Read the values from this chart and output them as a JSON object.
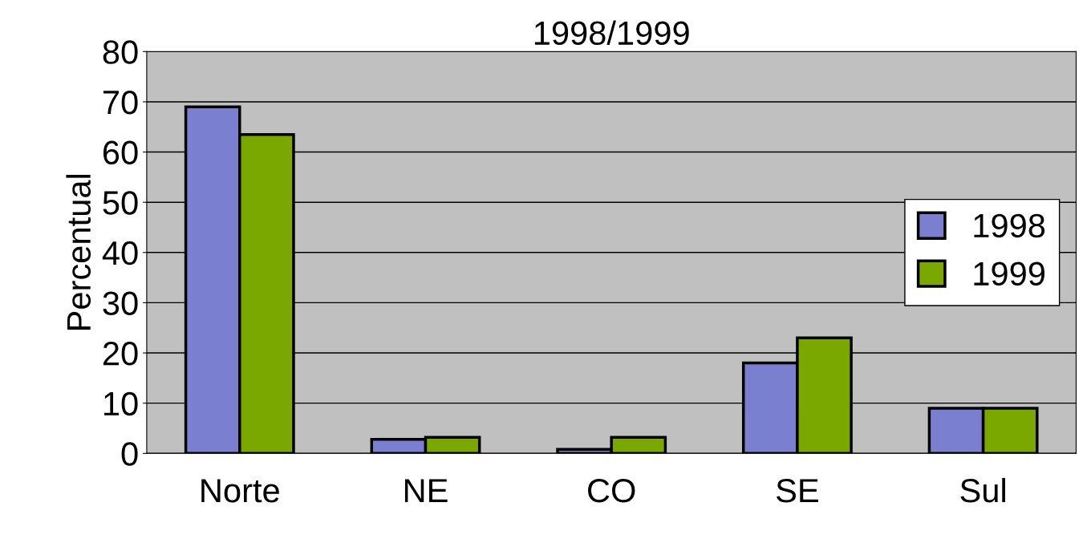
{
  "chart_data": {
    "type": "bar",
    "title": "1998/1999",
    "ylabel": "Percentual",
    "categories": [
      "Norte",
      "NE",
      "CO",
      "SE",
      "Sul"
    ],
    "series": [
      {
        "name": "1998",
        "color": "#7b7fd0",
        "values": [
          69,
          2.8,
          0.8,
          18,
          9
        ]
      },
      {
        "name": "1999",
        "color": "#7aa800",
        "values": [
          63.5,
          3.2,
          3.2,
          23,
          9
        ]
      }
    ],
    "ylim": [
      0,
      80
    ],
    "yticks": [
      0,
      10,
      20,
      30,
      40,
      50,
      60,
      70,
      80
    ],
    "grid": "y",
    "legend": "right"
  }
}
